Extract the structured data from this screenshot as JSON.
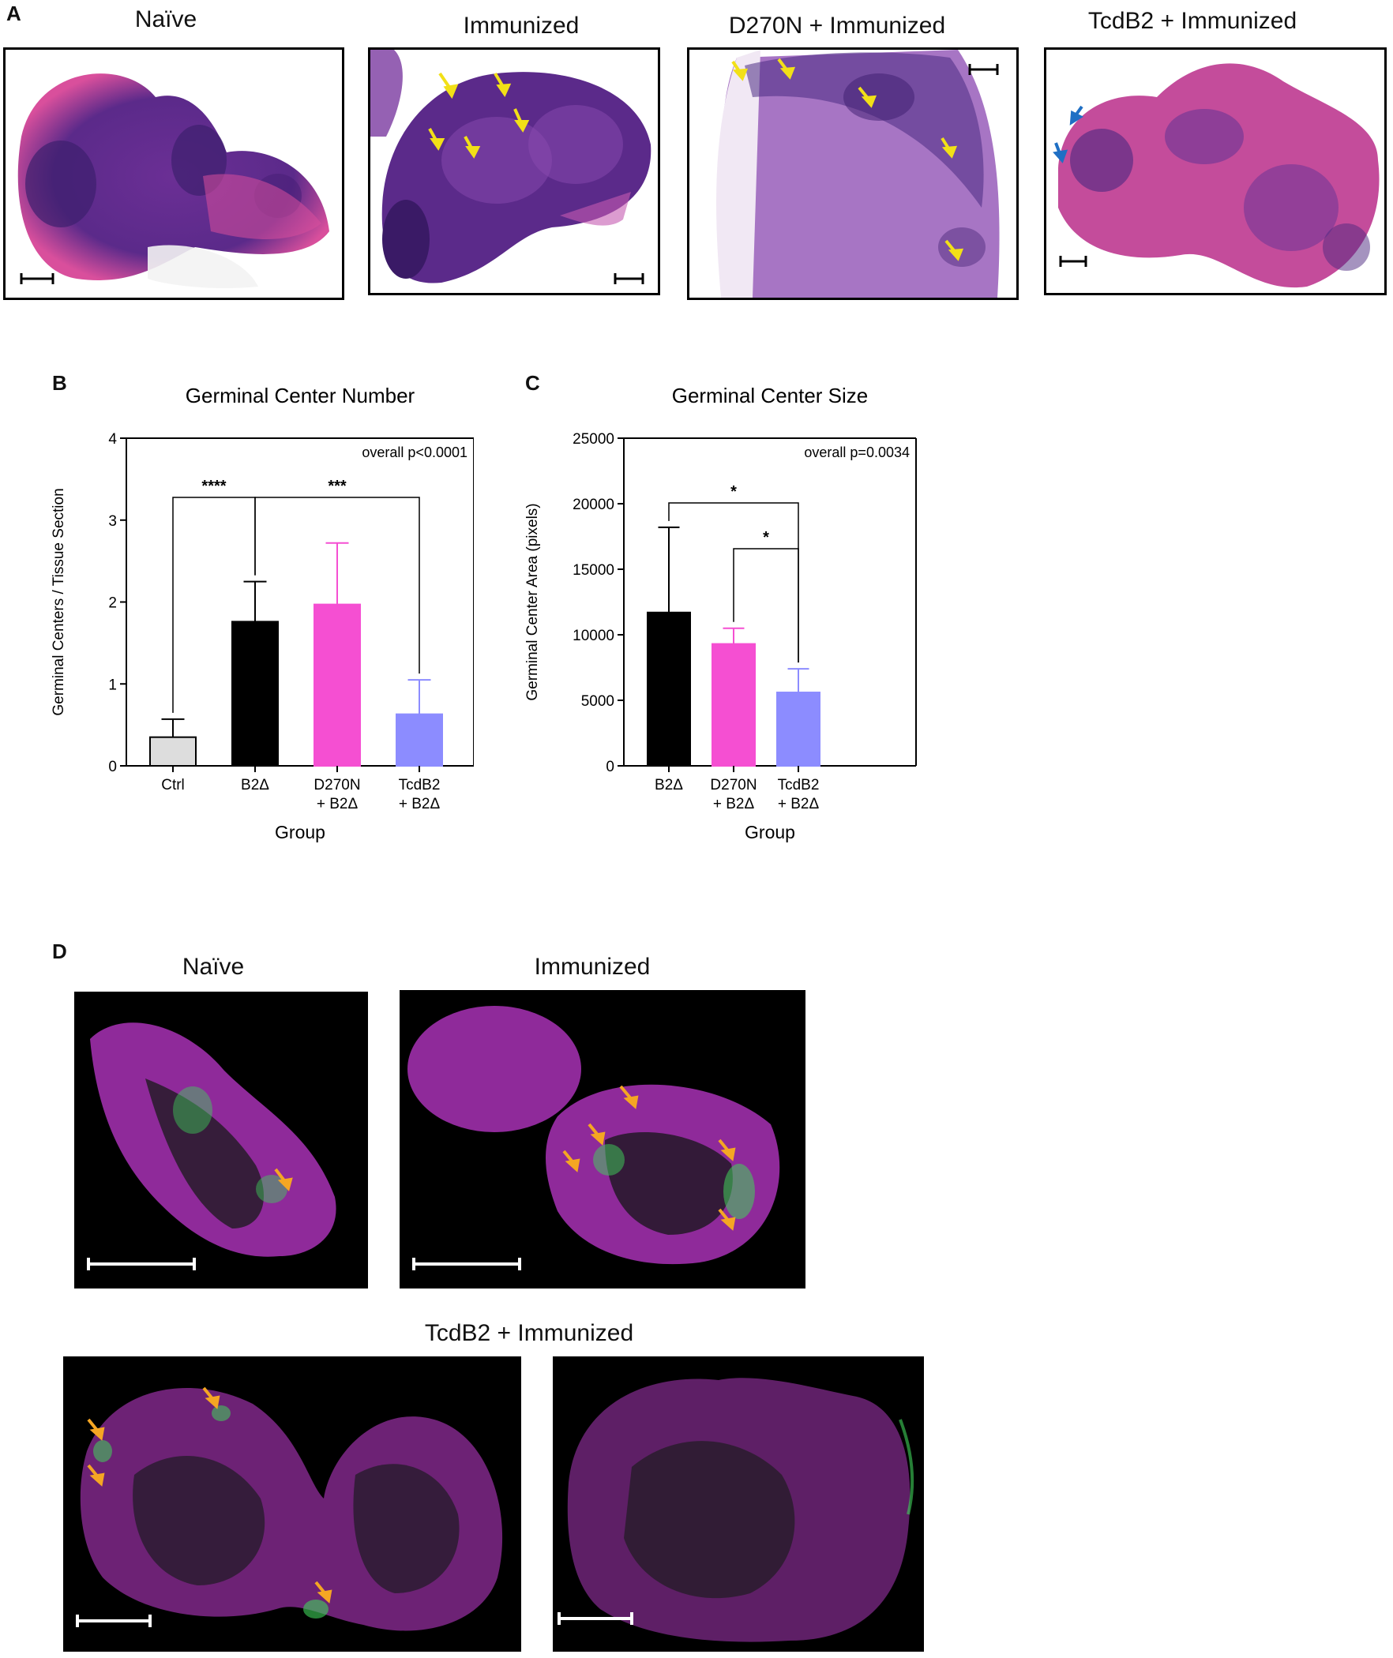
{
  "panels": {
    "A": {
      "letter": "A",
      "titles": [
        "Naïve",
        "Immunized",
        "D270N + Immunized",
        "TcdB2 + Immunized"
      ]
    },
    "B": {
      "letter": "B"
    },
    "C": {
      "letter": "C"
    },
    "D": {
      "letter": "D",
      "titles": [
        "Naïve",
        "Immunized",
        "TcdB2 + Immunized"
      ]
    }
  },
  "colors": {
    "he_pink": "#d94f9c",
    "he_purple": "#5b2a8a",
    "arrow_yellow": "#f2e017",
    "arrow_blue": "#1f6fc4",
    "arrow_orange": "#f5a623",
    "fl_magenta": "#a0289c",
    "fl_green": "#3fd35a",
    "ctrl_bar": "#dddddd",
    "b2_bar": "#000000",
    "d270_bar": "#f54fd2",
    "tcdb2_bar": "#8c8cff"
  },
  "chart_data": [
    {
      "type": "bar",
      "title": "Germinal Center Number",
      "xlabel": "Group",
      "ylabel": "Germinal Centers / Tissue Section",
      "categories": [
        [
          "Ctrl"
        ],
        [
          "B2Δ"
        ],
        [
          "D270N",
          "+ B2Δ"
        ],
        [
          "TcdB2",
          "+ B2Δ"
        ]
      ],
      "values": [
        0.35,
        1.76,
        1.97,
        0.63
      ],
      "errors": [
        0.22,
        0.49,
        0.75,
        0.42
      ],
      "colors": [
        "#dddddd",
        "#000000",
        "#f54fd2",
        "#8c8cff"
      ],
      "edge_colors": [
        "#000000",
        "#000000",
        "#f54fd2",
        "#8c8cff"
      ],
      "ylim": [
        0,
        4
      ],
      "yticks": [
        "0",
        "1",
        "2",
        "3",
        "4"
      ],
      "annotation": "overall p<0.0001",
      "comparisons": [
        {
          "from": 0,
          "to": 1,
          "label": "****"
        },
        {
          "from": 1,
          "to": 3,
          "label": "***"
        }
      ]
    },
    {
      "type": "bar",
      "title": "Germinal Center Size",
      "xlabel": "Group",
      "ylabel": "Germinal Center Area (pixels)",
      "categories": [
        [
          "B2Δ"
        ],
        [
          "D270N",
          "+ B2Δ"
        ],
        [
          "TcdB2",
          "+ B2Δ"
        ]
      ],
      "values": [
        11700,
        9300,
        5600
      ],
      "errors": [
        6500,
        1200,
        1800
      ],
      "colors": [
        "#000000",
        "#f54fd2",
        "#8c8cff"
      ],
      "edge_colors": [
        "#000000",
        "#f54fd2",
        "#8c8cff"
      ],
      "ylim": [
        0,
        25000
      ],
      "yticks": [
        "0",
        "5000",
        "10000",
        "15000",
        "20000",
        "25000"
      ],
      "annotation": "overall p=0.0034",
      "comparisons": [
        {
          "from": 0,
          "to": 2,
          "label": "*"
        },
        {
          "from": 1,
          "to": 2,
          "label": "*"
        }
      ]
    }
  ]
}
